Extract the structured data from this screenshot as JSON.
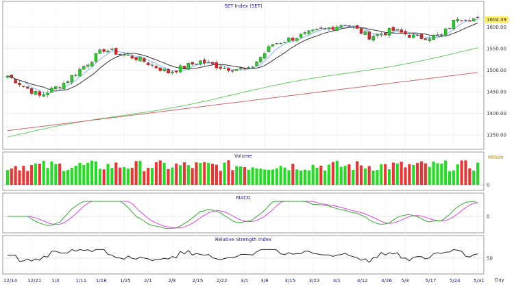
{
  "chart_data": [
    {
      "type": "candlestick",
      "title": "SET Index  (SET)",
      "ylim": [
        1320,
        1640
      ],
      "y_ticks": [
        1350,
        1400,
        1450,
        1500,
        1550,
        1600
      ],
      "y_tick_labels": [
        "1350.00",
        "1400.00",
        "1450.00",
        "1500.00",
        "1550.00",
        "1600.00"
      ],
      "last_value": 1604.39,
      "last_value_label": "1604.39",
      "colors": {
        "up": "#22cc22",
        "down": "#dd2222",
        "ma_fast": "#7fb8ff",
        "ma_mid": "#333333",
        "ma_slow": "#66cc66",
        "ma_long": "#cc6666",
        "last_badge": "#ffee55"
      }
    },
    {
      "type": "bar",
      "title": "Volume",
      "unit_label": "Million",
      "y_ticks": [
        0
      ],
      "y_tick_labels": [
        "0"
      ],
      "colors": {
        "up": "#22dd22",
        "down": "#ee3333"
      }
    },
    {
      "type": "line",
      "title": "MACD",
      "y_ticks": [
        0
      ],
      "y_tick_labels": [
        "0"
      ],
      "colors": {
        "macd": "#33aa33",
        "signal": "#dd44dd"
      }
    },
    {
      "type": "line",
      "title": "Relative Strength Index",
      "ylim": [
        0,
        100
      ],
      "y_ticks": [
        50
      ],
      "y_tick_labels": [
        "50"
      ],
      "colors": {
        "rsi": "#222222"
      }
    }
  ],
  "x_axis": {
    "tick_labels": [
      "12/14",
      "12/21",
      "1/4",
      "1/11",
      "1/18",
      "1/25",
      "2/1",
      "2/8",
      "2/15",
      "2/22",
      "3/1",
      "3/8",
      "3/15",
      "3/22",
      "4/1",
      "4/12",
      "4/26",
      "5/3",
      "5/17",
      "5/24",
      "5/31"
    ],
    "unit_label": "Day"
  }
}
